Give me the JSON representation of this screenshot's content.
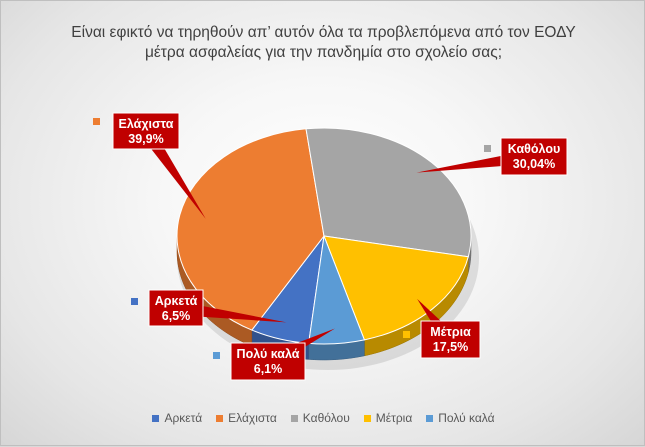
{
  "chart_data": {
    "type": "pie",
    "title": "Είναι εφικτό  να τηρηθούν απ’ αυτόν όλα τα προβλεπόμενα από τον ΕΟΔΥ μέτρα ασφαλείας για την πανδημία στο σχολείο σας;",
    "title_line1": "Είναι εφικτό  να τηρηθούν απ’ αυτόν όλα τα προβλεπόμενα από τον ΕΟΔΥ",
    "title_line2": "μέτρα ασφαλείας για την πανδημία στο σχολείο σας;",
    "legend_position": "bottom",
    "slices": [
      {
        "name": "Αρκετά",
        "value": 6.5,
        "label": "6,5%",
        "color": "#4472c4"
      },
      {
        "name": "Ελάχιστα",
        "value": 39.9,
        "label": "39,9%",
        "color": "#ed7d31"
      },
      {
        "name": "Καθόλου",
        "value": 30.04,
        "label": "30,04%",
        "color": "#a5a5a5"
      },
      {
        "name": "Μέτρια",
        "value": 17.5,
        "label": "17,5%",
        "color": "#ffc000"
      },
      {
        "name": "Πολύ καλά",
        "value": 6.1,
        "label": "6,1%",
        "color": "#5b9bd5"
      }
    ],
    "callout_color": "#c00000"
  }
}
